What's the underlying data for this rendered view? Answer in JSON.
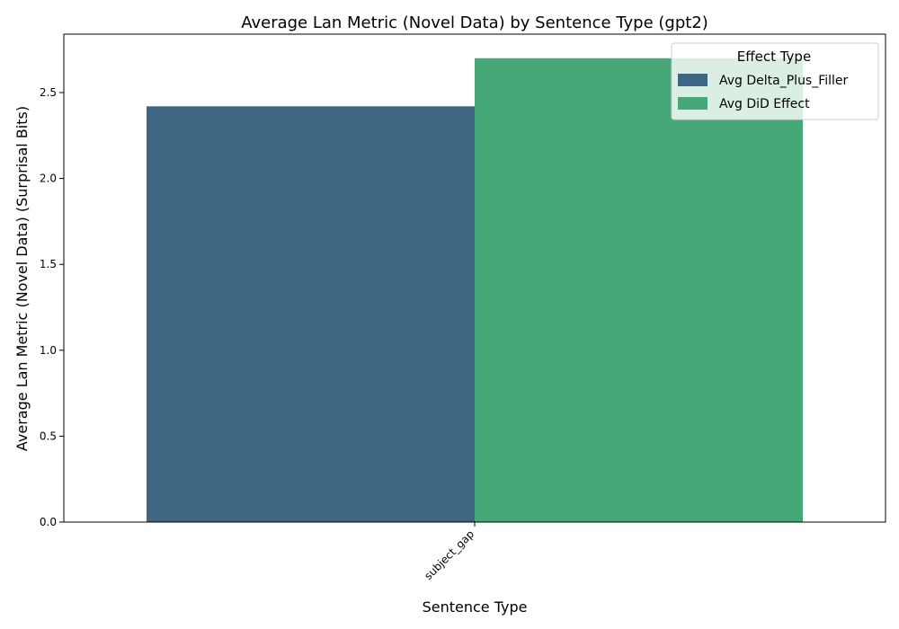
{
  "chart_data": {
    "type": "bar",
    "title": "Average Lan Metric (Novel Data) by Sentence Type (gpt2)",
    "xlabel": "Sentence Type",
    "ylabel": "Average Lan Metric (Novel Data) (Surprisal Bits)",
    "categories": [
      "subject_gap"
    ],
    "series": [
      {
        "name": "Avg Delta_Plus_Filler",
        "color": "#3e6683",
        "values": [
          2.42
        ]
      },
      {
        "name": "Avg DiD Effect",
        "color": "#46a878",
        "values": [
          2.7
        ]
      }
    ],
    "ylim": [
      0,
      2.84
    ],
    "yticks": [
      "0.0",
      "0.5",
      "1.0",
      "1.5",
      "2.0",
      "2.5"
    ],
    "grid": false,
    "legend": {
      "title": "Effect Type",
      "placement": "top-right"
    }
  }
}
